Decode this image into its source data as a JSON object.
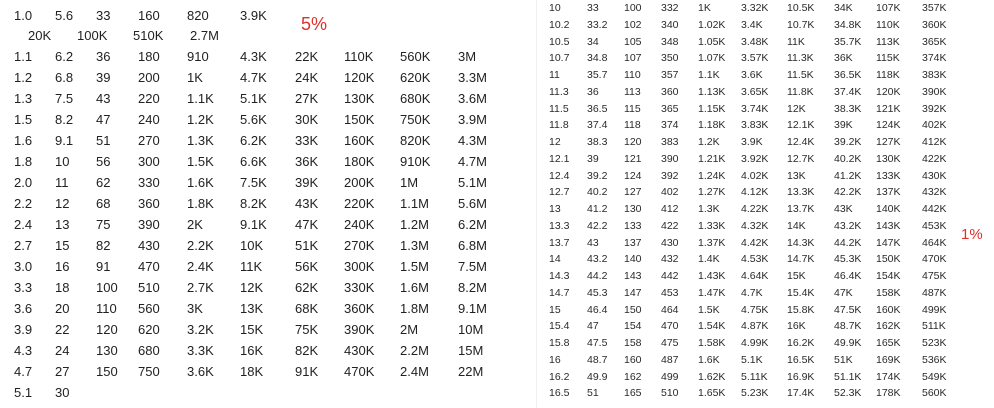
{
  "left_table": {
    "label": "5%",
    "accent_color": "#e0302a",
    "rows": [
      [
        "1.0",
        "5.6",
        "33",
        "160",
        "820",
        "3.9K"
      ],
      [
        "20K",
        "100K",
        "510K",
        "2.7M"
      ],
      [
        "1.1",
        "6.2",
        "36",
        "180",
        "910",
        "4.3K",
        "22K",
        "110K",
        "560K",
        "3M"
      ],
      [
        "1.2",
        "6.8",
        "39",
        "200",
        "1K",
        "4.7K",
        "24K",
        "120K",
        "620K",
        "3.3M"
      ],
      [
        "1.3",
        "7.5",
        "43",
        "220",
        "1.1K",
        "5.1K",
        "27K",
        "130K",
        "680K",
        "3.6M"
      ],
      [
        "1.5",
        "8.2",
        "47",
        "240",
        "1.2K",
        "5.6K",
        "30K",
        "150K",
        "750K",
        "3.9M"
      ],
      [
        "1.6",
        "9.1",
        "51",
        "270",
        "1.3K",
        "6.2K",
        "33K",
        "160K",
        "820K",
        "4.3M"
      ],
      [
        "1.8",
        "10",
        "56",
        "300",
        "1.5K",
        "6.6K",
        "36K",
        "180K",
        "910K",
        "4.7M"
      ],
      [
        "2.0",
        "11",
        "62",
        "330",
        "1.6K",
        "7.5K",
        "39K",
        "200K",
        "1M",
        "5.1M"
      ],
      [
        "2.2",
        "12",
        "68",
        "360",
        "1.8K",
        "8.2K",
        "43K",
        "220K",
        "1.1M",
        "5.6M"
      ],
      [
        "2.4",
        "13",
        "75",
        "390",
        "2K",
        "9.1K",
        "47K",
        "240K",
        "1.2M",
        "6.2M"
      ],
      [
        "2.7",
        "15",
        "82",
        "430",
        "2.2K",
        "10K",
        "51K",
        "270K",
        "1.3M",
        "6.8M"
      ],
      [
        "3.0",
        "16",
        "91",
        "470",
        "2.4K",
        "11K",
        "56K",
        "300K",
        "1.5M",
        "7.5M"
      ],
      [
        "3.3",
        "18",
        "100",
        "510",
        "2.7K",
        "12K",
        "62K",
        "330K",
        "1.6M",
        "8.2M"
      ],
      [
        "3.6",
        "20",
        "110",
        "560",
        "3K",
        "13K",
        "68K",
        "360K",
        "1.8M",
        "9.1M"
      ],
      [
        "3.9",
        "22",
        "120",
        "620",
        "3.2K",
        "15K",
        "75K",
        "390K",
        "2M",
        "10M"
      ],
      [
        "4.3",
        "24",
        "130",
        "680",
        "3.3K",
        "16K",
        "82K",
        "430K",
        "2.2M",
        "15M"
      ],
      [
        "4.7",
        "27",
        "150",
        "750",
        "3.6K",
        "18K",
        "91K",
        "470K",
        "2.4M",
        "22M"
      ],
      [
        "5.1",
        "30"
      ]
    ]
  },
  "right_table": {
    "label": "1%",
    "accent_color": "#e0302a",
    "rows": [
      [
        "10",
        "33",
        "100",
        "332",
        "1K",
        "3.32K",
        "10.5K",
        "34K",
        "107K",
        "357K"
      ],
      [
        "10.2",
        "33.2",
        "102",
        "340",
        "1.02K",
        "3.4K",
        "10.7K",
        "34.8K",
        "110K",
        "360K"
      ],
      [
        "10.5",
        "34",
        "105",
        "348",
        "1.05K",
        "3.48K",
        "11K",
        "35.7K",
        "113K",
        "365K"
      ],
      [
        "10.7",
        "34.8",
        "107",
        "350",
        "1.07K",
        "3.57K",
        "11.3K",
        "36K",
        "115K",
        "374K"
      ],
      [
        "11",
        "35.7",
        "110",
        "357",
        "1.1K",
        "3.6K",
        "11.5K",
        "36.5K",
        "118K",
        "383K"
      ],
      [
        "11.3",
        "36",
        "113",
        "360",
        "1.13K",
        "3.65K",
        "11.8K",
        "37.4K",
        "120K",
        "390K"
      ],
      [
        "11.5",
        "36.5",
        "115",
        "365",
        "1.15K",
        "3.74K",
        "12K",
        "38.3K",
        "121K",
        "392K"
      ],
      [
        "11.8",
        "37.4",
        "118",
        "374",
        "1.18K",
        "3.83K",
        "12.1K",
        "39K",
        "124K",
        "402K"
      ],
      [
        "12",
        "38.3",
        "120",
        "383",
        "1.2K",
        "3.9K",
        "12.4K",
        "39.2K",
        "127K",
        "412K"
      ],
      [
        "12.1",
        "39",
        "121",
        "390",
        "1.21K",
        "3.92K",
        "12.7K",
        "40.2K",
        "130K",
        "422K"
      ],
      [
        "12.4",
        "39.2",
        "124",
        "392",
        "1.24K",
        "4.02K",
        "13K",
        "41.2K",
        "133K",
        "430K"
      ],
      [
        "12.7",
        "40.2",
        "127",
        "402",
        "1.27K",
        "4.12K",
        "13.3K",
        "42.2K",
        "137K",
        "432K"
      ],
      [
        "13",
        "41.2",
        "130",
        "412",
        "1.3K",
        "4.22K",
        "13.7K",
        "43K",
        "140K",
        "442K"
      ],
      [
        "13.3",
        "42.2",
        "133",
        "422",
        "1.33K",
        "4.32K",
        "14K",
        "43.2K",
        "143K",
        "453K"
      ],
      [
        "13.7",
        "43",
        "137",
        "430",
        "1.37K",
        "4.42K",
        "14.3K",
        "44.2K",
        "147K",
        "464K"
      ],
      [
        "14",
        "43.2",
        "140",
        "432",
        "1.4K",
        "4.53K",
        "14.7K",
        "45.3K",
        "150K",
        "470K"
      ],
      [
        "14.3",
        "44.2",
        "143",
        "442",
        "1.43K",
        "4.64K",
        "15K",
        "46.4K",
        "154K",
        "475K"
      ],
      [
        "14.7",
        "45.3",
        "147",
        "453",
        "1.47K",
        "4.7K",
        "15.4K",
        "47K",
        "158K",
        "487K"
      ],
      [
        "15",
        "46.4",
        "150",
        "464",
        "1.5K",
        "4.75K",
        "15.8K",
        "47.5K",
        "160K",
        "499K"
      ],
      [
        "15.4",
        "47",
        "154",
        "470",
        "1.54K",
        "4.87K",
        "16K",
        "48.7K",
        "162K",
        "511K"
      ],
      [
        "15.8",
        "47.5",
        "158",
        "475",
        "1.58K",
        "4.99K",
        "16.2K",
        "49.9K",
        "165K",
        "523K"
      ],
      [
        "16",
        "48.7",
        "160",
        "487",
        "1.6K",
        "5.1K",
        "16.5K",
        "51K",
        "169K",
        "536K"
      ],
      [
        "16.2",
        "49.9",
        "162",
        "499",
        "1.62K",
        "5.11K",
        "16.9K",
        "51.1K",
        "174K",
        "549K"
      ],
      [
        "16.5",
        "51",
        "165",
        "510",
        "1.65K",
        "5.23K",
        "17.4K",
        "52.3K",
        "178K",
        "560K"
      ]
    ]
  }
}
